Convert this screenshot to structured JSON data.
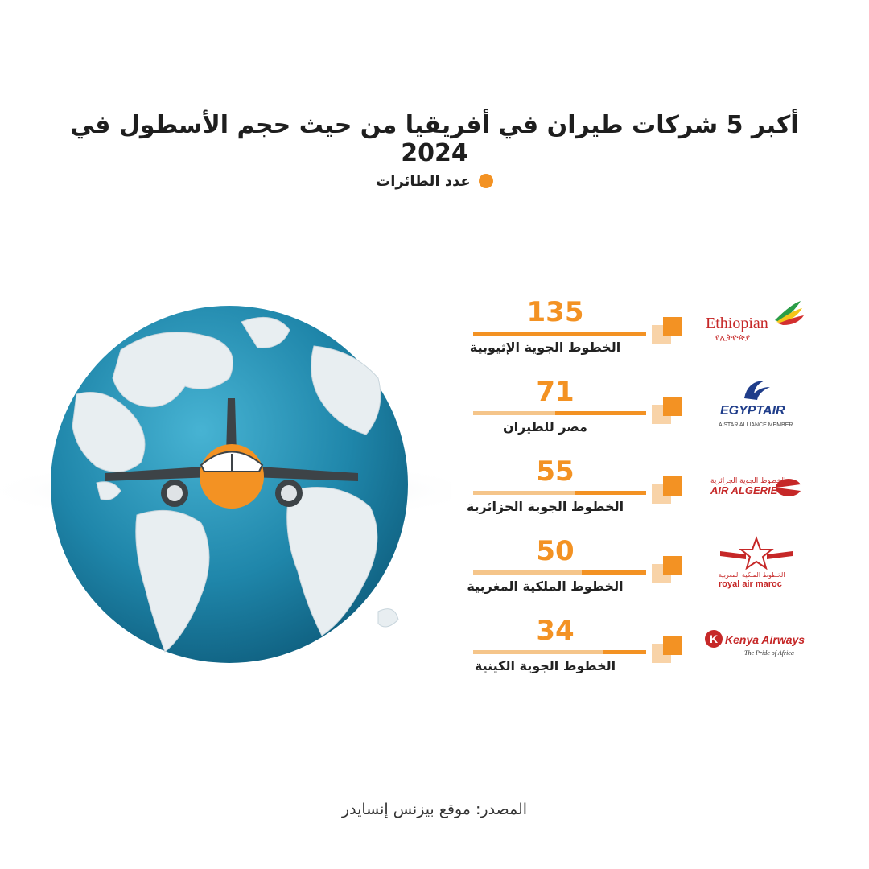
{
  "title": "أكبر 5 شركات طيران في أفريقيا من حيث حجم الأسطول في 2024",
  "legend": {
    "label": "عدد الطائرات",
    "color": "#f39223"
  },
  "source": "المصدر: موقع بيزنس إنسايدر",
  "chart_data": {
    "type": "bar",
    "title": "أكبر 5 شركات طيران في أفريقيا من حيث حجم الأسطول في 2024",
    "series": [
      {
        "name": "عدد الطائرات",
        "values": [
          135,
          71,
          55,
          50,
          34
        ]
      }
    ],
    "categories": [
      "الخطوط الجوية الإثيوبية",
      "مصر للطيران",
      "الخطوط الجوية الجزائرية",
      "الخطوط الملكية المغربية",
      "الخطوط الجوية الكينية"
    ],
    "values": [
      135,
      71,
      55,
      50,
      34
    ],
    "max": 135
  },
  "airlines": [
    {
      "name": "الخطوط الجوية الإثيوبية",
      "value": "135",
      "logo": {
        "text": "Ethiopian",
        "sub": "የኢትዮጵያ",
        "icon": "ethiopian-logo"
      }
    },
    {
      "name": "مصر للطيران",
      "value": "71",
      "logo": {
        "text": "EGYPTAIR",
        "sub": "A STAR ALLIANCE MEMBER",
        "icon": "egyptair-logo"
      }
    },
    {
      "name": "الخطوط الجوية الجزائرية",
      "value": "55",
      "logo": {
        "text": "AIR ALGERIE",
        "sub": "الخطوط الجوية الجزائرية",
        "icon": "air-algerie-logo"
      }
    },
    {
      "name": "الخطوط الملكية المغربية",
      "value": "50",
      "logo": {
        "text": "royal air maroc",
        "sub": "الخطوط الملكية المغربية",
        "icon": "royal-air-maroc-logo"
      }
    },
    {
      "name": "الخطوط الجوية الكينية",
      "value": "34",
      "logo": {
        "text": "Kenya Airways",
        "sub": "The Pride of Africa",
        "icon": "kenya-airways-logo"
      }
    }
  ]
}
